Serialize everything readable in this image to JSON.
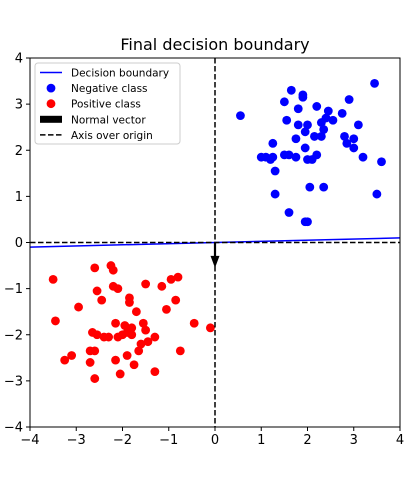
{
  "chart_data": {
    "type": "scatter",
    "title": "Final decision boundary",
    "xlabel": "",
    "ylabel": "",
    "xlim": [
      -4,
      4
    ],
    "ylim": [
      -4,
      4
    ],
    "xticks": [
      -4,
      -3,
      -2,
      -1,
      0,
      1,
      2,
      3,
      4
    ],
    "yticks": [
      -4,
      -3,
      -2,
      -1,
      0,
      1,
      2,
      3,
      4
    ],
    "xtick_labels": [
      "−4",
      "−3",
      "−2",
      "−1",
      "0",
      "1",
      "2",
      "3",
      "4"
    ],
    "ytick_labels": [
      "−4",
      "−3",
      "−2",
      "−1",
      "0",
      "1",
      "2",
      "3",
      "4"
    ],
    "grid": false,
    "legend_position": "top-left",
    "legend": [
      {
        "label": "Decision boundary",
        "kind": "line",
        "color": "#0000ff"
      },
      {
        "label": "Negative class",
        "kind": "marker",
        "color": "#0000ff"
      },
      {
        "label": "Positive class",
        "kind": "marker",
        "color": "#ff0000"
      },
      {
        "label": "Normal vector",
        "kind": "patch",
        "color": "#000000"
      },
      {
        "label": "Axis over origin",
        "kind": "dashed",
        "color": "#000000"
      }
    ],
    "decision_boundary": {
      "x": [
        -4,
        4
      ],
      "y": [
        -0.1,
        0.1
      ],
      "color": "#0000ff"
    },
    "normal_vector": {
      "x": 0,
      "y": 0,
      "dx": 0,
      "dy": -0.55,
      "color": "#000000"
    },
    "axis_over_origin": {
      "x": 0,
      "y": 0,
      "color": "#000000"
    },
    "series": [
      {
        "name": "Negative class",
        "color": "#0000ff",
        "points": [
          [
            0.55,
            2.75
          ],
          [
            1.0,
            1.85
          ],
          [
            1.1,
            1.85
          ],
          [
            1.2,
            1.8
          ],
          [
            1.25,
            1.85
          ],
          [
            1.25,
            2.15
          ],
          [
            1.3,
            1.55
          ],
          [
            1.3,
            1.05
          ],
          [
            1.5,
            1.9
          ],
          [
            1.5,
            3.05
          ],
          [
            1.55,
            2.65
          ],
          [
            1.6,
            1.9
          ],
          [
            1.6,
            0.65
          ],
          [
            1.65,
            3.3
          ],
          [
            1.75,
            1.85
          ],
          [
            1.75,
            2.25
          ],
          [
            1.8,
            2.55
          ],
          [
            1.8,
            2.9
          ],
          [
            1.9,
            3.2
          ],
          [
            1.9,
            3.15
          ],
          [
            1.95,
            2.05
          ],
          [
            1.95,
            2.4
          ],
          [
            1.95,
            0.45
          ],
          [
            2.0,
            0.45
          ],
          [
            2.0,
            2.55
          ],
          [
            2.0,
            1.8
          ],
          [
            2.05,
            1.2
          ],
          [
            2.1,
            1.8
          ],
          [
            2.15,
            2.3
          ],
          [
            2.2,
            2.95
          ],
          [
            2.2,
            1.9
          ],
          [
            2.3,
            2.3
          ],
          [
            2.3,
            2.6
          ],
          [
            2.35,
            2.45
          ],
          [
            2.35,
            1.2
          ],
          [
            2.4,
            2.7
          ],
          [
            2.45,
            2.85
          ],
          [
            2.55,
            2.65
          ],
          [
            2.75,
            2.8
          ],
          [
            2.8,
            2.3
          ],
          [
            2.85,
            2.15
          ],
          [
            2.9,
            3.1
          ],
          [
            3.0,
            2.25
          ],
          [
            3.0,
            2.05
          ],
          [
            3.1,
            2.55
          ],
          [
            3.2,
            1.85
          ],
          [
            3.45,
            3.45
          ],
          [
            3.5,
            1.05
          ],
          [
            3.6,
            1.75
          ]
        ]
      },
      {
        "name": "Positive class",
        "color": "#ff0000",
        "points": [
          [
            -3.5,
            -0.8
          ],
          [
            -3.45,
            -1.7
          ],
          [
            -3.25,
            -2.55
          ],
          [
            -3.1,
            -2.45
          ],
          [
            -2.95,
            -1.4
          ],
          [
            -2.7,
            -2.35
          ],
          [
            -2.7,
            -2.6
          ],
          [
            -2.65,
            -1.95
          ],
          [
            -2.6,
            -2.35
          ],
          [
            -2.6,
            -2.95
          ],
          [
            -2.6,
            -0.55
          ],
          [
            -2.55,
            -1.05
          ],
          [
            -2.55,
            -2.0
          ],
          [
            -2.45,
            -1.25
          ],
          [
            -2.4,
            -2.05
          ],
          [
            -2.3,
            -2.05
          ],
          [
            -2.25,
            -0.5
          ],
          [
            -2.2,
            -0.6
          ],
          [
            -2.2,
            -0.95
          ],
          [
            -2.15,
            -1.75
          ],
          [
            -2.15,
            -2.55
          ],
          [
            -2.1,
            -1.0
          ],
          [
            -2.1,
            -2.05
          ],
          [
            -2.05,
            -2.85
          ],
          [
            -2.0,
            -2.0
          ],
          [
            -1.95,
            -1.8
          ],
          [
            -1.9,
            -1.95
          ],
          [
            -1.9,
            -2.45
          ],
          [
            -1.85,
            -1.2
          ],
          [
            -1.85,
            -1.3
          ],
          [
            -1.8,
            -1.85
          ],
          [
            -1.8,
            -2.0
          ],
          [
            -1.75,
            -2.65
          ],
          [
            -1.7,
            -1.5
          ],
          [
            -1.65,
            -2.35
          ],
          [
            -1.6,
            -2.2
          ],
          [
            -1.55,
            -1.75
          ],
          [
            -1.5,
            -0.9
          ],
          [
            -1.5,
            -1.9
          ],
          [
            -1.45,
            -2.15
          ],
          [
            -1.3,
            -2.05
          ],
          [
            -1.3,
            -2.8
          ],
          [
            -1.15,
            -0.95
          ],
          [
            -1.05,
            -1.45
          ],
          [
            -0.95,
            -0.8
          ],
          [
            -0.85,
            -1.25
          ],
          [
            -0.8,
            -0.75
          ],
          [
            -0.75,
            -2.35
          ],
          [
            -0.45,
            -1.75
          ],
          [
            -0.1,
            -1.85
          ]
        ]
      }
    ]
  }
}
